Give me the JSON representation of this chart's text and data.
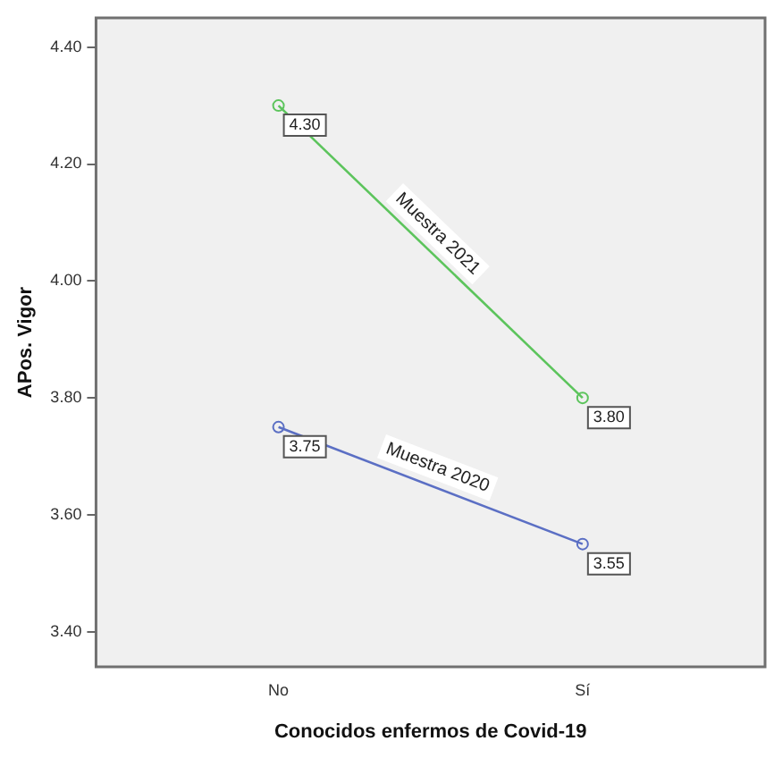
{
  "chart_data": {
    "type": "line",
    "xlabel": "Conocidos enfermos de Covid-19",
    "ylabel": "APos. Vigor",
    "categories": [
      "No",
      "Sí"
    ],
    "series": [
      {
        "name": "Muestra 2021",
        "color": "#5cc45c",
        "values": [
          4.3,
          3.8
        ],
        "value_labels": [
          "4.30",
          "3.80"
        ]
      },
      {
        "name": "Muestra 2020",
        "color": "#5b6fc4",
        "values": [
          3.75,
          3.55
        ],
        "value_labels": [
          "3.75",
          "3.55"
        ]
      }
    ],
    "ylim": [
      3.34,
      4.45
    ],
    "yticks": [
      {
        "value": 3.4,
        "label": "3.40"
      },
      {
        "value": 3.6,
        "label": "3.60"
      },
      {
        "value": 3.8,
        "label": "3.80"
      },
      {
        "value": 4.0,
        "label": "4.00"
      },
      {
        "value": 4.2,
        "label": "4.20"
      },
      {
        "value": 4.4,
        "label": "4.40"
      }
    ],
    "grid": false,
    "legend": false,
    "marker": "circle",
    "line_style": "solid"
  }
}
